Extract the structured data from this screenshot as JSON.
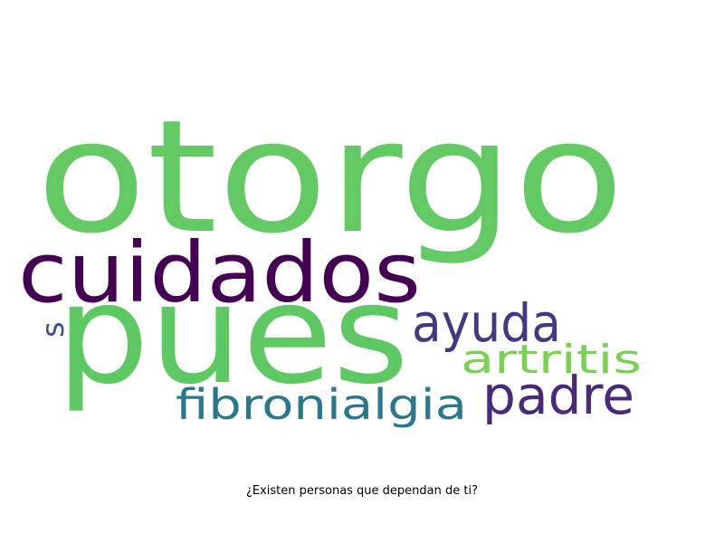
{
  "caption": "¿Existen personas que dependan de ti?",
  "words": [
    {
      "text": "otorgo",
      "color": "#62c963"
    },
    {
      "text": "pues",
      "color": "#5ec962"
    },
    {
      "text": "cuidados",
      "color": "#440154"
    },
    {
      "text": "ayuda",
      "color": "#433982"
    },
    {
      "text": "artritis",
      "color": "#7ad151"
    },
    {
      "text": "padre",
      "color": "#472a7a"
    },
    {
      "text": "fibronialgia",
      "color": "#2a788e"
    },
    {
      "text": "s",
      "color": "#3b528b"
    }
  ]
}
